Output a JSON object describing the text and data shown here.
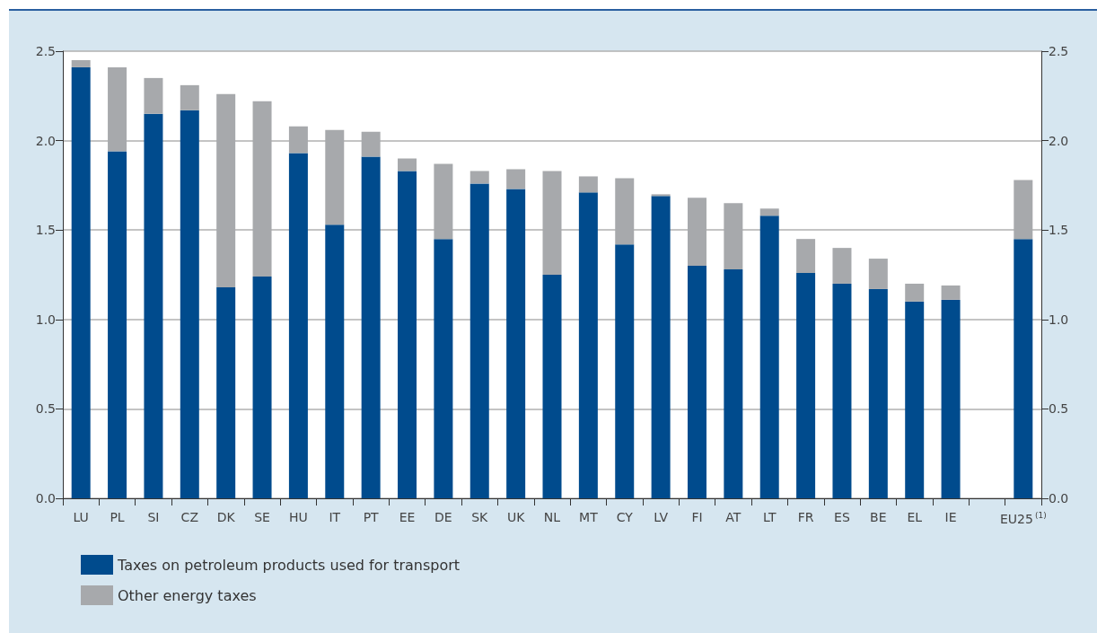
{
  "chart_data": {
    "type": "bar",
    "stacked": true,
    "categories": [
      "LU",
      "PL",
      "SI",
      "CZ",
      "DK",
      "SE",
      "HU",
      "IT",
      "PT",
      "EE",
      "DE",
      "SK",
      "UK",
      "NL",
      "MT",
      "CY",
      "LV",
      "FI",
      "AT",
      "LT",
      "FR",
      "ES",
      "BE",
      "EL",
      "IE",
      null,
      "EU25$^{(1)}$"
    ],
    "series": [
      {
        "name": "Taxes on petroleum products used for transport",
        "color": "#004b8d",
        "values": [
          2.41,
          1.94,
          2.15,
          2.17,
          1.18,
          1.24,
          1.93,
          1.53,
          1.91,
          1.83,
          1.45,
          1.76,
          1.73,
          1.25,
          1.71,
          1.42,
          1.69,
          1.3,
          1.28,
          1.58,
          1.26,
          1.2,
          1.17,
          1.1,
          1.11,
          null,
          1.45
        ]
      },
      {
        "name": "Other energy taxes",
        "color": "#a7a9ac",
        "values": [
          0.04,
          0.47,
          0.2,
          0.14,
          1.08,
          0.98,
          0.15,
          0.53,
          0.14,
          0.07,
          0.42,
          0.07,
          0.11,
          0.58,
          0.09,
          0.37,
          0.01,
          0.38,
          0.37,
          0.04,
          0.19,
          0.2,
          0.17,
          0.1,
          0.08,
          null,
          0.33
        ]
      }
    ],
    "ylim": [
      0,
      2.5
    ],
    "yticks": [
      {
        "value": 0,
        "label": "0.0"
      },
      0.5,
      {
        "value": 1,
        "label": "1.0"
      },
      1.5,
      {
        "value": 2,
        "label": "2.0"
      },
      2.5
    ],
    "y2lim": [
      0,
      2.5
    ],
    "y2ticks": [
      {
        "value": 0,
        "label": "0.0"
      },
      0.5,
      {
        "value": 1,
        "label": "1.0"
      },
      1.5,
      {
        "value": 2,
        "label": "2.0"
      },
      2.5
    ],
    "grid": "y",
    "legend": "bottom left"
  }
}
